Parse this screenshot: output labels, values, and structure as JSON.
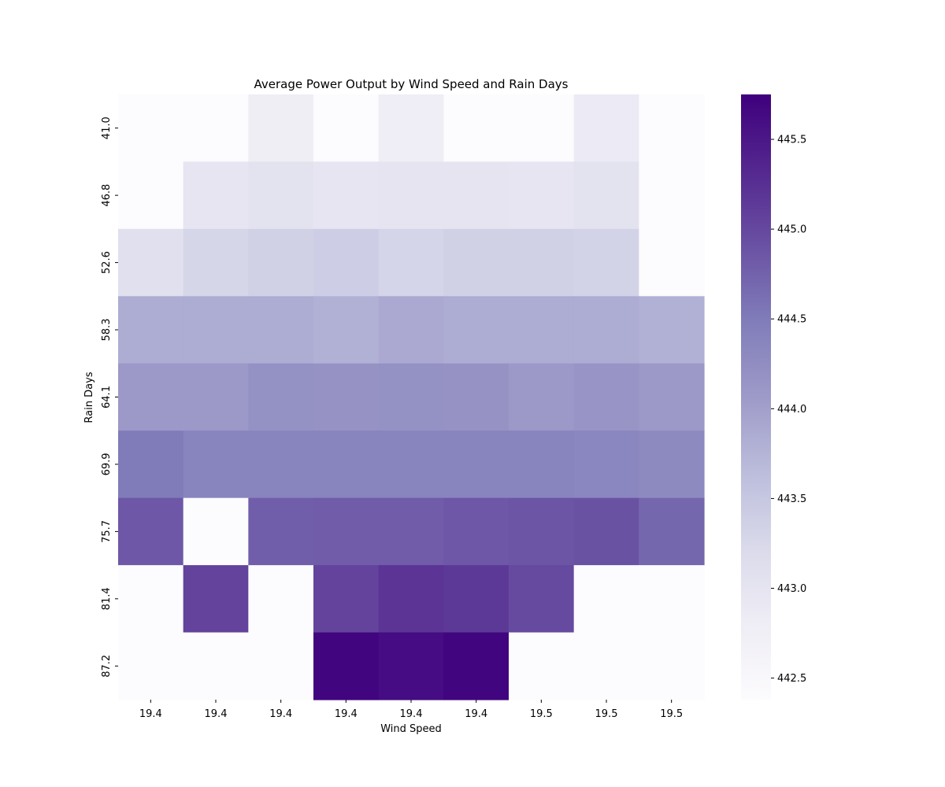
{
  "chart_data": {
    "type": "heatmap",
    "title": "Average Power Output by Wind Speed and Rain Days",
    "xlabel": "Wind Speed",
    "ylabel": "Rain Days",
    "x_tick_labels": [
      "19.4",
      "19.4",
      "19.4",
      "19.4",
      "19.4",
      "19.4",
      "19.5",
      "19.5",
      "19.5"
    ],
    "y_tick_labels": [
      "41.0",
      "46.8",
      "52.6",
      "58.3",
      "64.1",
      "69.9",
      "75.7",
      "81.4",
      "87.2"
    ],
    "values": [
      [
        null,
        null,
        442.78,
        null,
        442.8,
        null,
        null,
        442.86,
        null
      ],
      [
        null,
        442.98,
        443.05,
        442.98,
        443.0,
        443.0,
        442.98,
        443.05,
        null
      ],
      [
        443.1,
        443.28,
        443.35,
        443.4,
        443.3,
        443.35,
        443.35,
        443.32,
        null
      ],
      [
        443.85,
        443.85,
        443.85,
        443.8,
        443.88,
        443.85,
        443.85,
        443.85,
        443.8
      ],
      [
        444.1,
        444.1,
        444.2,
        444.18,
        444.2,
        444.18,
        444.1,
        444.15,
        444.1
      ],
      [
        444.5,
        444.38,
        444.38,
        444.38,
        444.38,
        444.38,
        444.38,
        444.35,
        444.3
      ],
      [
        444.85,
        null,
        444.78,
        444.8,
        444.8,
        444.85,
        444.87,
        444.9,
        444.7
      ],
      [
        null,
        445.05,
        null,
        445.05,
        445.2,
        445.15,
        444.98,
        null,
        null
      ],
      [
        null,
        null,
        null,
        445.7,
        445.62,
        445.7,
        null,
        null,
        null
      ]
    ],
    "colorbar": {
      "min": 442.38,
      "max": 445.75,
      "ticks": [
        442.5,
        443.0,
        443.5,
        444.0,
        444.5,
        445.0,
        445.5
      ],
      "tick_labels": [
        "442.5",
        "443.0",
        "443.5",
        "444.0",
        "444.5",
        "445.0",
        "445.5"
      ],
      "colormap": "Purples",
      "colors": [
        "#fcfbfd",
        "#efedf5",
        "#dadaeb",
        "#bcbddc",
        "#9e9ac8",
        "#807dba",
        "#6a51a3",
        "#54278f",
        "#3f007d"
      ]
    },
    "missing_color": "#fcfbfd",
    "grid": false
  }
}
